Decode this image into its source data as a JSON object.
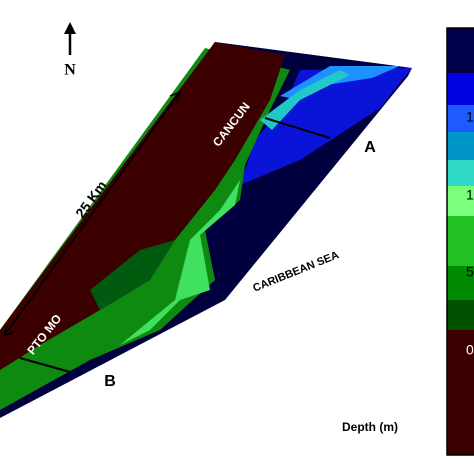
{
  "north_label": "N",
  "scale_label": "25 Km",
  "places": {
    "cancun": "CANCUN",
    "sea": "CARIBBEAN SEA",
    "pto": "PTO MO"
  },
  "points": {
    "a": "A",
    "b": "B"
  },
  "legend": {
    "title": "Depth (m)",
    "ticks": [
      "1",
      "1",
      "5",
      "0"
    ]
  }
}
